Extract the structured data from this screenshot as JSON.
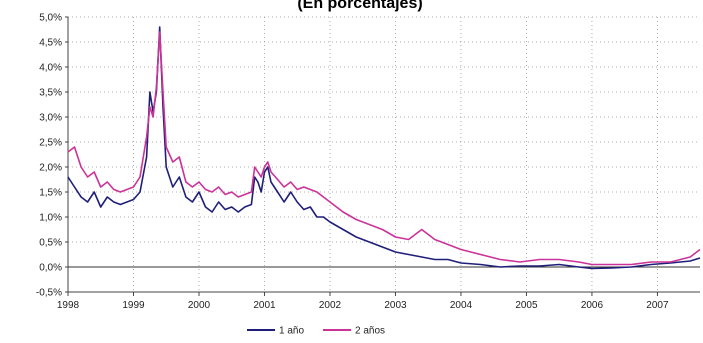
{
  "chart_data": {
    "type": "line",
    "title": "(En porcentajes)",
    "xlabel": "",
    "ylabel": "",
    "xlim": [
      1998.0,
      2007.65
    ],
    "ylim": [
      -0.5,
      5.0
    ],
    "y_ticks": [
      "5,0%",
      "4,5%",
      "4,0%",
      "3,5%",
      "3,0%",
      "2,5%",
      "2,0%",
      "1,5%",
      "1,0%",
      "0,5%",
      "0,0%",
      "-0,5%"
    ],
    "y_tick_values": [
      5.0,
      4.5,
      4.0,
      3.5,
      3.0,
      2.5,
      2.0,
      1.5,
      1.0,
      0.5,
      0.0,
      -0.5
    ],
    "x_ticks": [
      "1998",
      "1999",
      "2000",
      "2001",
      "2002",
      "2003",
      "2004",
      "2005",
      "2006",
      "2007"
    ],
    "x_tick_values": [
      1998,
      1999,
      2000,
      2001,
      2002,
      2003,
      2004,
      2005,
      2006,
      2007
    ],
    "grid": "dotted",
    "legend_position": "bottom-center",
    "series": [
      {
        "name": "1 año",
        "color": "#1f1f7a",
        "points": [
          [
            1998.0,
            1.8
          ],
          [
            1998.1,
            1.6
          ],
          [
            1998.2,
            1.4
          ],
          [
            1998.3,
            1.3
          ],
          [
            1998.4,
            1.5
          ],
          [
            1998.5,
            1.2
          ],
          [
            1998.6,
            1.4
          ],
          [
            1998.7,
            1.3
          ],
          [
            1998.8,
            1.25
          ],
          [
            1998.9,
            1.3
          ],
          [
            1999.0,
            1.35
          ],
          [
            1999.1,
            1.5
          ],
          [
            1999.2,
            2.2
          ],
          [
            1999.25,
            3.5
          ],
          [
            1999.3,
            3.1
          ],
          [
            1999.35,
            3.5
          ],
          [
            1999.4,
            4.8
          ],
          [
            1999.45,
            3.2
          ],
          [
            1999.5,
            2.0
          ],
          [
            1999.6,
            1.6
          ],
          [
            1999.7,
            1.8
          ],
          [
            1999.8,
            1.4
          ],
          [
            1999.9,
            1.3
          ],
          [
            2000.0,
            1.5
          ],
          [
            2000.1,
            1.2
          ],
          [
            2000.2,
            1.1
          ],
          [
            2000.3,
            1.3
          ],
          [
            2000.4,
            1.15
          ],
          [
            2000.5,
            1.2
          ],
          [
            2000.6,
            1.1
          ],
          [
            2000.7,
            1.2
          ],
          [
            2000.8,
            1.25
          ],
          [
            2000.85,
            1.8
          ],
          [
            2000.9,
            1.7
          ],
          [
            2000.95,
            1.5
          ],
          [
            2001.0,
            1.9
          ],
          [
            2001.05,
            2.0
          ],
          [
            2001.1,
            1.7
          ],
          [
            2001.2,
            1.5
          ],
          [
            2001.3,
            1.3
          ],
          [
            2001.4,
            1.5
          ],
          [
            2001.5,
            1.3
          ],
          [
            2001.6,
            1.15
          ],
          [
            2001.7,
            1.2
          ],
          [
            2001.8,
            1.0
          ],
          [
            2001.9,
            1.0
          ],
          [
            2002.0,
            0.9
          ],
          [
            2002.2,
            0.75
          ],
          [
            2002.4,
            0.6
          ],
          [
            2002.6,
            0.5
          ],
          [
            2002.8,
            0.4
          ],
          [
            2003.0,
            0.3
          ],
          [
            2003.2,
            0.25
          ],
          [
            2003.4,
            0.2
          ],
          [
            2003.6,
            0.15
          ],
          [
            2003.8,
            0.15
          ],
          [
            2004.0,
            0.08
          ],
          [
            2004.3,
            0.05
          ],
          [
            2004.6,
            0.0
          ],
          [
            2004.9,
            0.02
          ],
          [
            2005.2,
            0.02
          ],
          [
            2005.5,
            0.05
          ],
          [
            2005.8,
            0.0
          ],
          [
            2006.0,
            -0.03
          ],
          [
            2006.3,
            -0.02
          ],
          [
            2006.6,
            0.0
          ],
          [
            2006.9,
            0.05
          ],
          [
            2007.2,
            0.08
          ],
          [
            2007.5,
            0.12
          ],
          [
            2007.65,
            0.18
          ]
        ]
      },
      {
        "name": "2 años",
        "color": "#cc3399",
        "points": [
          [
            1998.0,
            2.3
          ],
          [
            1998.1,
            2.4
          ],
          [
            1998.2,
            2.0
          ],
          [
            1998.3,
            1.8
          ],
          [
            1998.4,
            1.9
          ],
          [
            1998.5,
            1.6
          ],
          [
            1998.6,
            1.7
          ],
          [
            1998.7,
            1.55
          ],
          [
            1998.8,
            1.5
          ],
          [
            1998.9,
            1.55
          ],
          [
            1999.0,
            1.6
          ],
          [
            1999.1,
            1.8
          ],
          [
            1999.2,
            2.6
          ],
          [
            1999.25,
            3.2
          ],
          [
            1999.3,
            3.0
          ],
          [
            1999.35,
            3.6
          ],
          [
            1999.4,
            4.7
          ],
          [
            1999.45,
            3.5
          ],
          [
            1999.5,
            2.4
          ],
          [
            1999.6,
            2.1
          ],
          [
            1999.7,
            2.2
          ],
          [
            1999.8,
            1.7
          ],
          [
            1999.9,
            1.6
          ],
          [
            2000.0,
            1.7
          ],
          [
            2000.1,
            1.55
          ],
          [
            2000.2,
            1.5
          ],
          [
            2000.3,
            1.6
          ],
          [
            2000.4,
            1.45
          ],
          [
            2000.5,
            1.5
          ],
          [
            2000.6,
            1.4
          ],
          [
            2000.7,
            1.45
          ],
          [
            2000.8,
            1.5
          ],
          [
            2000.85,
            2.0
          ],
          [
            2000.9,
            1.9
          ],
          [
            2000.95,
            1.8
          ],
          [
            2001.0,
            2.0
          ],
          [
            2001.05,
            2.1
          ],
          [
            2001.1,
            1.9
          ],
          [
            2001.2,
            1.75
          ],
          [
            2001.3,
            1.6
          ],
          [
            2001.4,
            1.7
          ],
          [
            2001.5,
            1.55
          ],
          [
            2001.6,
            1.6
          ],
          [
            2001.7,
            1.55
          ],
          [
            2001.8,
            1.5
          ],
          [
            2001.9,
            1.4
          ],
          [
            2002.0,
            1.3
          ],
          [
            2002.2,
            1.1
          ],
          [
            2002.4,
            0.95
          ],
          [
            2002.6,
            0.85
          ],
          [
            2002.8,
            0.75
          ],
          [
            2003.0,
            0.6
          ],
          [
            2003.2,
            0.55
          ],
          [
            2003.4,
            0.75
          ],
          [
            2003.6,
            0.55
          ],
          [
            2003.8,
            0.45
          ],
          [
            2004.0,
            0.35
          ],
          [
            2004.3,
            0.25
          ],
          [
            2004.6,
            0.15
          ],
          [
            2004.9,
            0.1
          ],
          [
            2005.2,
            0.15
          ],
          [
            2005.5,
            0.15
          ],
          [
            2005.8,
            0.1
          ],
          [
            2006.0,
            0.05
          ],
          [
            2006.3,
            0.05
          ],
          [
            2006.6,
            0.05
          ],
          [
            2006.9,
            0.1
          ],
          [
            2007.2,
            0.1
          ],
          [
            2007.5,
            0.2
          ],
          [
            2007.65,
            0.35
          ]
        ]
      }
    ]
  }
}
